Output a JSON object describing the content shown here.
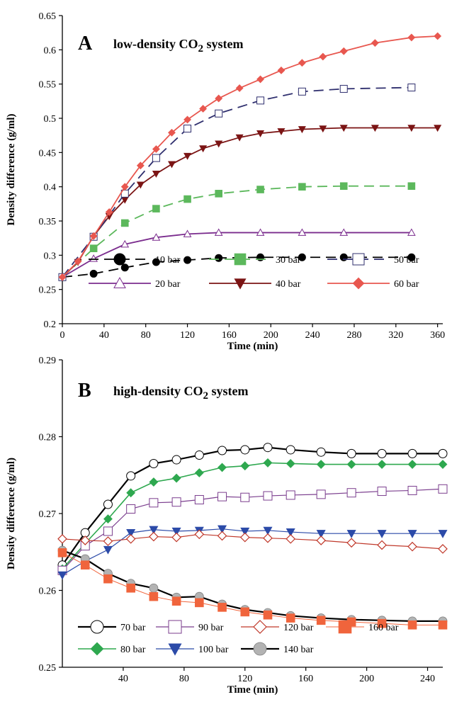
{
  "chart_data": [
    {
      "panel": "A",
      "type": "line",
      "title": "low-density CO",
      "title_subscript": "2",
      "title_suffix": " system",
      "xlabel": "Time (min)",
      "ylabel": "Density difference (g/ml)",
      "xlim": [
        0,
        365
      ],
      "ylim": [
        0.2,
        0.65
      ],
      "xticks": [
        0,
        40,
        80,
        120,
        160,
        200,
        240,
        280,
        320,
        360
      ],
      "yticks": [
        0.2,
        0.25,
        0.3,
        0.35,
        0.4,
        0.45,
        0.5,
        0.55,
        0.6,
        0.65
      ],
      "grid": false,
      "legend": "bottom, two rows",
      "series": [
        {
          "name": "10 bar",
          "color": "#000000",
          "marker": "filled-circle",
          "line": "dashed",
          "x": [
            0,
            30,
            60,
            90,
            120,
            150,
            190,
            230,
            270,
            335
          ],
          "y": [
            0.268,
            0.273,
            0.282,
            0.29,
            0.293,
            0.296,
            0.297,
            0.297,
            0.297,
            0.297
          ]
        },
        {
          "name": "20 bar",
          "color": "#7b2d8e",
          "marker": "open-triangle",
          "line": "solid",
          "x": [
            0,
            30,
            60,
            90,
            120,
            150,
            190,
            230,
            270,
            335
          ],
          "y": [
            0.268,
            0.295,
            0.316,
            0.326,
            0.331,
            0.333,
            0.333,
            0.333,
            0.333,
            0.333
          ]
        },
        {
          "name": "30 bar",
          "color": "#5cb85c",
          "marker": "filled-square",
          "line": "dashed",
          "x": [
            0,
            30,
            60,
            90,
            120,
            150,
            190,
            230,
            270,
            335
          ],
          "y": [
            0.268,
            0.31,
            0.347,
            0.368,
            0.382,
            0.39,
            0.396,
            0.4,
            0.401,
            0.401
          ]
        },
        {
          "name": "40 bar",
          "color": "#7b1414",
          "marker": "filled-triangle-down",
          "line": "solid",
          "x": [
            0,
            15,
            30,
            45,
            60,
            75,
            90,
            105,
            120,
            135,
            150,
            170,
            190,
            210,
            230,
            250,
            270,
            300,
            335,
            360
          ],
          "y": [
            0.268,
            0.29,
            0.328,
            0.357,
            0.381,
            0.403,
            0.419,
            0.433,
            0.445,
            0.456,
            0.463,
            0.472,
            0.478,
            0.481,
            0.484,
            0.485,
            0.486,
            0.486,
            0.486,
            0.486
          ]
        },
        {
          "name": "50 bar",
          "color": "#2f2f6e",
          "marker": "open-square",
          "line": "dashed",
          "x": [
            0,
            30,
            60,
            90,
            120,
            150,
            190,
            230,
            270,
            335
          ],
          "y": [
            0.268,
            0.327,
            0.39,
            0.442,
            0.485,
            0.507,
            0.526,
            0.539,
            0.543,
            0.545
          ]
        },
        {
          "name": "60 bar",
          "color": "#e8574f",
          "marker": "filled-diamond",
          "line": "solid",
          "x": [
            0,
            15,
            30,
            45,
            60,
            75,
            90,
            105,
            120,
            135,
            150,
            170,
            190,
            210,
            230,
            250,
            270,
            300,
            335,
            360
          ],
          "y": [
            0.268,
            0.291,
            0.328,
            0.363,
            0.4,
            0.431,
            0.455,
            0.479,
            0.498,
            0.514,
            0.529,
            0.544,
            0.557,
            0.57,
            0.581,
            0.59,
            0.598,
            0.61,
            0.618,
            0.62
          ]
        }
      ]
    },
    {
      "panel": "B",
      "type": "line",
      "title": "high-density CO",
      "title_subscript": "2",
      "title_suffix": " system",
      "xlabel": "Time (min)",
      "ylabel": "Density difference (g/ml)",
      "xlim": [
        0,
        250
      ],
      "ylim": [
        0.25,
        0.29
      ],
      "xticks": [
        40,
        80,
        120,
        160,
        200,
        240
      ],
      "yticks": [
        0.25,
        0.26,
        0.27,
        0.28,
        0.29
      ],
      "grid": false,
      "legend": "bottom-left, two rows",
      "series": [
        {
          "name": "70 bar",
          "color": "#000000",
          "marker": "open-circle",
          "line": "solid",
          "width": 2.2,
          "x": [
            0,
            15,
            30,
            45,
            60,
            75,
            90,
            105,
            120,
            135,
            150,
            170,
            190,
            210,
            230,
            250
          ],
          "y": [
            0.2633,
            0.2675,
            0.2712,
            0.2749,
            0.2765,
            0.277,
            0.2776,
            0.2782,
            0.2783,
            0.2786,
            0.2783,
            0.278,
            0.2778,
            0.2778,
            0.2778,
            0.2778
          ]
        },
        {
          "name": "80 bar",
          "color": "#2ea84f",
          "marker": "filled-diamond",
          "line": "solid",
          "width": 1.6,
          "x": [
            0,
            15,
            30,
            45,
            60,
            75,
            90,
            105,
            120,
            135,
            150,
            170,
            190,
            210,
            230,
            250
          ],
          "y": [
            0.2628,
            0.2661,
            0.2693,
            0.2727,
            0.2741,
            0.2746,
            0.2753,
            0.276,
            0.2762,
            0.2766,
            0.2765,
            0.2764,
            0.2764,
            0.2764,
            0.2764,
            0.2764
          ]
        },
        {
          "name": "90 bar",
          "color": "#7b3e8e",
          "marker": "open-square",
          "line": "solid",
          "width": 1.2,
          "x": [
            0,
            15,
            30,
            45,
            60,
            75,
            90,
            105,
            120,
            135,
            150,
            170,
            190,
            210,
            230,
            250
          ],
          "y": [
            0.2626,
            0.2658,
            0.2677,
            0.2706,
            0.2714,
            0.2715,
            0.2718,
            0.2722,
            0.2721,
            0.2723,
            0.2724,
            0.2725,
            0.2727,
            0.2729,
            0.273,
            0.2732
          ]
        },
        {
          "name": "100 bar",
          "color": "#2b4aa8",
          "marker": "filled-triangle-down",
          "line": "solid",
          "width": 1.2,
          "x": [
            0,
            15,
            30,
            45,
            60,
            75,
            90,
            105,
            120,
            135,
            150,
            170,
            190,
            210,
            230,
            250
          ],
          "y": [
            0.262,
            0.2638,
            0.2653,
            0.2675,
            0.2679,
            0.2677,
            0.2678,
            0.268,
            0.2677,
            0.2678,
            0.2676,
            0.2674,
            0.2674,
            0.2674,
            0.2674,
            0.2674
          ]
        },
        {
          "name": "120 bar",
          "color": "#c0392b",
          "marker": "open-diamond",
          "line": "solid",
          "width": 1.2,
          "x": [
            0,
            15,
            30,
            45,
            60,
            75,
            90,
            105,
            120,
            135,
            150,
            170,
            190,
            210,
            230,
            250
          ],
          "y": [
            0.2667,
            0.2665,
            0.2664,
            0.2667,
            0.267,
            0.2669,
            0.2673,
            0.2671,
            0.2669,
            0.2668,
            0.2667,
            0.2665,
            0.2662,
            0.2659,
            0.2657,
            0.2654
          ]
        },
        {
          "name": "140 bar",
          "color": "#000000",
          "marker": "filled-circle-gray",
          "line": "solid",
          "width": 2.2,
          "x": [
            0,
            15,
            30,
            45,
            60,
            75,
            90,
            105,
            120,
            135,
            150,
            170,
            190,
            210,
            230,
            250
          ],
          "y": [
            0.2652,
            0.2641,
            0.2622,
            0.2609,
            0.2603,
            0.2591,
            0.2592,
            0.2582,
            0.2575,
            0.2571,
            0.2567,
            0.2564,
            0.2562,
            0.2561,
            0.256,
            0.256
          ]
        },
        {
          "name": "160 bar",
          "color": "#f0643c",
          "marker": "filled-square",
          "line": "solid",
          "width": 1.0,
          "x": [
            0,
            15,
            30,
            45,
            60,
            75,
            90,
            105,
            120,
            135,
            150,
            170,
            190,
            210,
            230,
            250
          ],
          "y": [
            0.2649,
            0.2633,
            0.2615,
            0.2603,
            0.2592,
            0.2586,
            0.2584,
            0.2578,
            0.2572,
            0.2568,
            0.2564,
            0.2561,
            0.2559,
            0.2557,
            0.2555,
            0.2555
          ]
        }
      ]
    }
  ]
}
